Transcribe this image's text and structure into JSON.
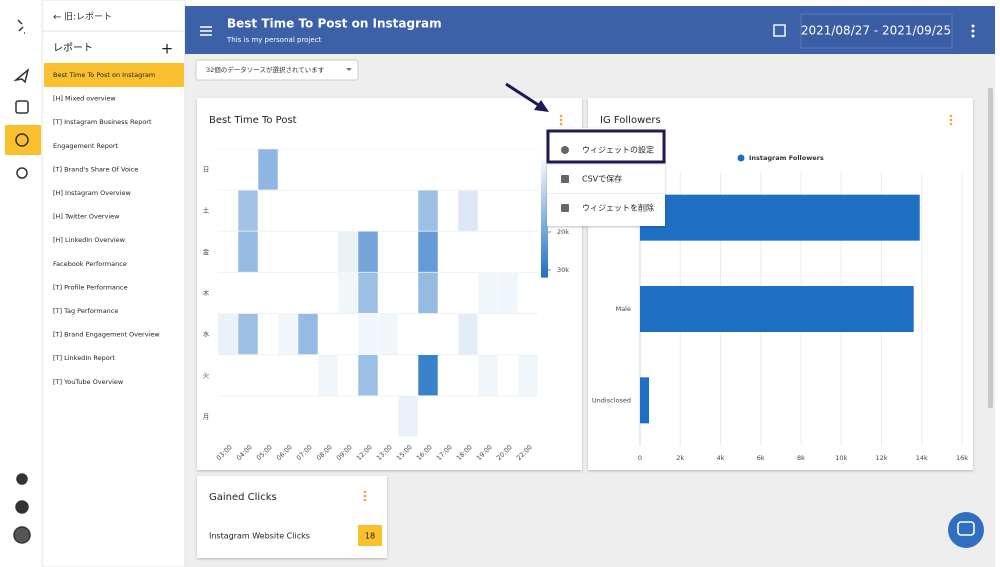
{
  "sidebar": {
    "back": "旧:レポート",
    "heading": "レポート",
    "items": [
      "Best Time To Post on Instagram",
      "[H] Mixed overview",
      "[T] Instagram Business Report",
      "Engagement Report",
      "[T] Brand's Share Of Voice",
      "[H] Instagram Overview",
      "[H] Twitter Overview",
      "[H] LinkedIn Overview",
      "Facebook Performance",
      "[T] Profile Performance",
      "[T] Tag Performance",
      "[T] Brand Engagement Overview",
      "[T] LinkedIn Report",
      "[T] YouTube Overview"
    ]
  },
  "header": {
    "title": "Best Time To Post on Instagram",
    "subtitle": "This is my personal project",
    "date_range": "2021/08/27 - 2021/09/25"
  },
  "datasource_select": "32個のデータソースが選択されています",
  "chart_data": [
    {
      "type": "heatmap",
      "title": "Best Time To Post",
      "rows": [
        "日",
        "土",
        "金",
        "木",
        "水",
        "火",
        "月"
      ],
      "columns": [
        "03:00",
        "04:00",
        "05:00",
        "06:00",
        "07:00",
        "08:00",
        "09:00",
        "12:00",
        "13:00",
        "15:00",
        "16:00",
        "17:00",
        "18:00",
        "19:00",
        "20:00",
        "22:00"
      ],
      "values": [
        [
          null,
          null,
          16000,
          null,
          null,
          null,
          null,
          null,
          null,
          null,
          null,
          null,
          null,
          null,
          null,
          null
        ],
        [
          null,
          13000,
          null,
          null,
          null,
          null,
          null,
          null,
          null,
          null,
          14000,
          null,
          5000,
          null,
          null,
          null
        ],
        [
          null,
          15000,
          null,
          null,
          null,
          null,
          3000,
          20000,
          null,
          null,
          22000,
          null,
          null,
          null,
          null,
          null
        ],
        [
          null,
          null,
          null,
          null,
          null,
          null,
          2000,
          14000,
          null,
          null,
          15000,
          null,
          null,
          2000,
          2000,
          null
        ],
        [
          3000,
          14000,
          null,
          2000,
          15000,
          null,
          null,
          2000,
          2000,
          null,
          null,
          null,
          4000,
          null,
          null,
          null
        ],
        [
          null,
          null,
          null,
          null,
          null,
          2000,
          null,
          14000,
          null,
          null,
          28000,
          null,
          null,
          2000,
          null,
          2000
        ],
        [
          null,
          null,
          null,
          null,
          null,
          null,
          null,
          null,
          null,
          3000,
          null,
          null,
          null,
          null,
          null,
          null
        ]
      ],
      "color": "#1e6fc4",
      "zlim": [
        0,
        32000
      ],
      "zticks": [
        {
          "value": 20000,
          "label": "20k"
        },
        {
          "value": 30000,
          "label": "30k"
        }
      ]
    },
    {
      "type": "bar",
      "orientation": "horizontal",
      "title": "IG Followers",
      "categories": [
        null,
        "Male",
        "Undisclosed"
      ],
      "series": [
        {
          "name": "Instagram Followers",
          "color": "#1e6fc4",
          "values": [
            13900,
            13600,
            450
          ]
        }
      ],
      "xlim": [
        0,
        16000
      ],
      "xticks": [
        0,
        {
          "value": 2000,
          "label": "2k"
        },
        {
          "value": 4000,
          "label": "4k"
        },
        {
          "value": 6000,
          "label": "6k"
        },
        {
          "value": 8000,
          "label": "8k"
        },
        {
          "value": 10000,
          "label": "10k"
        },
        {
          "value": 12000,
          "label": "12k"
        },
        {
          "value": 14000,
          "label": "14k"
        },
        {
          "value": 16000,
          "label": "16k"
        }
      ],
      "grid": true
    }
  ],
  "widget_menu": [
    "ウィジェットの設定",
    "CSVで保存",
    "ウィジェットを削除"
  ],
  "clicks_widget": {
    "title": "Gained Clicks",
    "rows": [
      {
        "label": "Instagram Website Clicks",
        "value": "18"
      }
    ]
  }
}
